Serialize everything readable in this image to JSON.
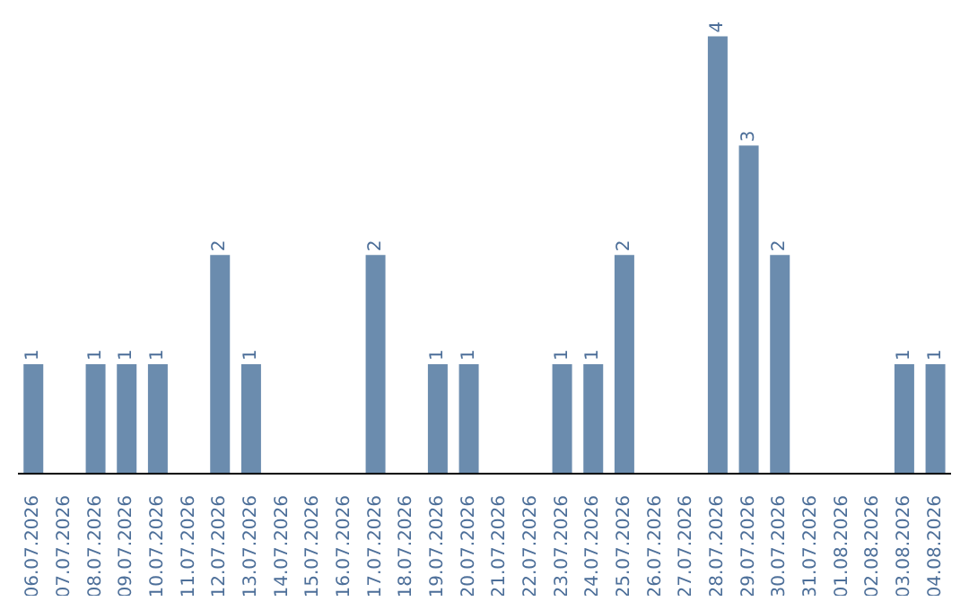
{
  "chart_data": {
    "type": "bar",
    "categories": [
      "06.07.2026",
      "07.07.2026",
      "08.07.2026",
      "09.07.2026",
      "10.07.2026",
      "11.07.2026",
      "12.07.2026",
      "13.07.2026",
      "14.07.2026",
      "15.07.2026",
      "16.07.2026",
      "17.07.2026",
      "18.07.2026",
      "19.07.2026",
      "20.07.2026",
      "21.07.2026",
      "22.07.2026",
      "23.07.2026",
      "24.07.2026",
      "25.07.2026",
      "26.07.2026",
      "27.07.2026",
      "28.07.2026",
      "29.07.2026",
      "30.07.2026",
      "31.07.2026",
      "01.08.2026",
      "02.08.2026",
      "03.08.2026",
      "04.08.2026"
    ],
    "values": [
      1,
      0,
      1,
      1,
      1,
      0,
      2,
      1,
      0,
      0,
      0,
      2,
      0,
      1,
      1,
      0,
      0,
      1,
      1,
      2,
      0,
      0,
      4,
      3,
      2,
      0,
      0,
      0,
      1,
      1
    ],
    "value_labels": [
      "1",
      null,
      "1",
      "1",
      "1",
      null,
      "2",
      "1",
      null,
      null,
      null,
      "2",
      null,
      "1",
      "1",
      null,
      null,
      "1",
      "1",
      "2",
      null,
      null,
      "4",
      "3",
      "2",
      null,
      null,
      null,
      "1",
      "1"
    ],
    "color": "#6b8cae",
    "tick_labels": "x"
  }
}
